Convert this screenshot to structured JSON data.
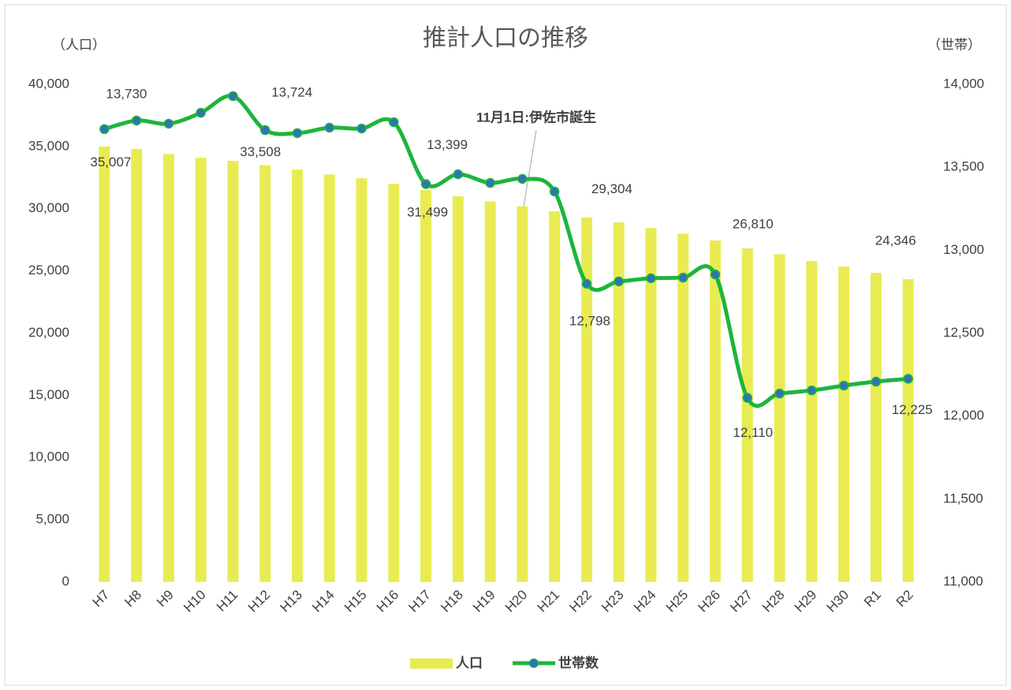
{
  "chart_data": {
    "type": "bar_line",
    "title": "推計人口の推移",
    "y_label": "（人口）",
    "y2_label": "（世帯）",
    "annotation": "11月1日:伊佐市誕生",
    "categories": [
      "H7",
      "H8",
      "H9",
      "H10",
      "H11",
      "H12",
      "H13",
      "H14",
      "H15",
      "H16",
      "H17",
      "H18",
      "H19",
      "H20",
      "H21",
      "H22",
      "H23",
      "H24",
      "H25",
      "H26",
      "H27",
      "H28",
      "H29",
      "H30",
      "R1",
      "R2"
    ],
    "series": [
      {
        "name": "人口",
        "color": "#e8ec52",
        "kind": "bar",
        "values": [
          35007,
          34800,
          34400,
          34100,
          33850,
          33508,
          33150,
          32750,
          32450,
          32000,
          31499,
          31000,
          30600,
          30200,
          29800,
          29304,
          28900,
          28450,
          28000,
          27450,
          26810,
          26350,
          25800,
          25350,
          24850,
          24346
        ],
        "value_labels": [
          "35,007",
          null,
          null,
          null,
          null,
          "33,508",
          null,
          null,
          null,
          null,
          "31,499",
          null,
          null,
          null,
          null,
          "29,304",
          null,
          null,
          null,
          null,
          "26,810",
          null,
          null,
          null,
          null,
          "24,346"
        ]
      },
      {
        "name": "世帯数",
        "color": "#1db53c",
        "marker_color": "#2e74b5",
        "kind": "line",
        "axis": "y2",
        "values": [
          13730,
          13782,
          13763,
          13829,
          13929,
          13724,
          13706,
          13739,
          13734,
          13772,
          13399,
          13458,
          13406,
          13430,
          13354,
          12798,
          12812,
          12831,
          12835,
          12854,
          12110,
          12136,
          12155,
          12184,
          12208,
          12225
        ],
        "value_labels": [
          "13,730",
          null,
          null,
          null,
          null,
          "13,724",
          null,
          null,
          null,
          null,
          "13,399",
          null,
          null,
          null,
          null,
          "12,798",
          null,
          null,
          null,
          null,
          "12,110",
          null,
          null,
          null,
          null,
          "12,225"
        ]
      }
    ],
    "ylim": [
      0,
      40000
    ],
    "yticks": [
      0,
      {
        "value": 5000,
        "label": "5,000"
      },
      {
        "value": 10000,
        "label": "10,000"
      },
      {
        "value": 15000,
        "label": "15,000"
      },
      {
        "value": 20000,
        "label": "20,000"
      },
      {
        "value": 25000,
        "label": "25,000"
      },
      {
        "value": 30000,
        "label": "30,000"
      },
      {
        "value": 35000,
        "label": "35,000"
      },
      {
        "value": 40000,
        "label": "40,000"
      }
    ],
    "y2lim": [
      11000,
      14000
    ],
    "y2ticks": [
      {
        "value": 11000,
        "label": "11,000"
      },
      {
        "value": 11500,
        "label": "11,500"
      },
      {
        "value": 12000,
        "label": "12,000"
      },
      {
        "value": 12500,
        "label": "12,500"
      },
      {
        "value": 13000,
        "label": "13,000"
      },
      {
        "value": 13500,
        "label": "13,500"
      },
      {
        "value": 14000,
        "label": "14,000"
      }
    ],
    "grid": false,
    "legend": "bottom"
  }
}
